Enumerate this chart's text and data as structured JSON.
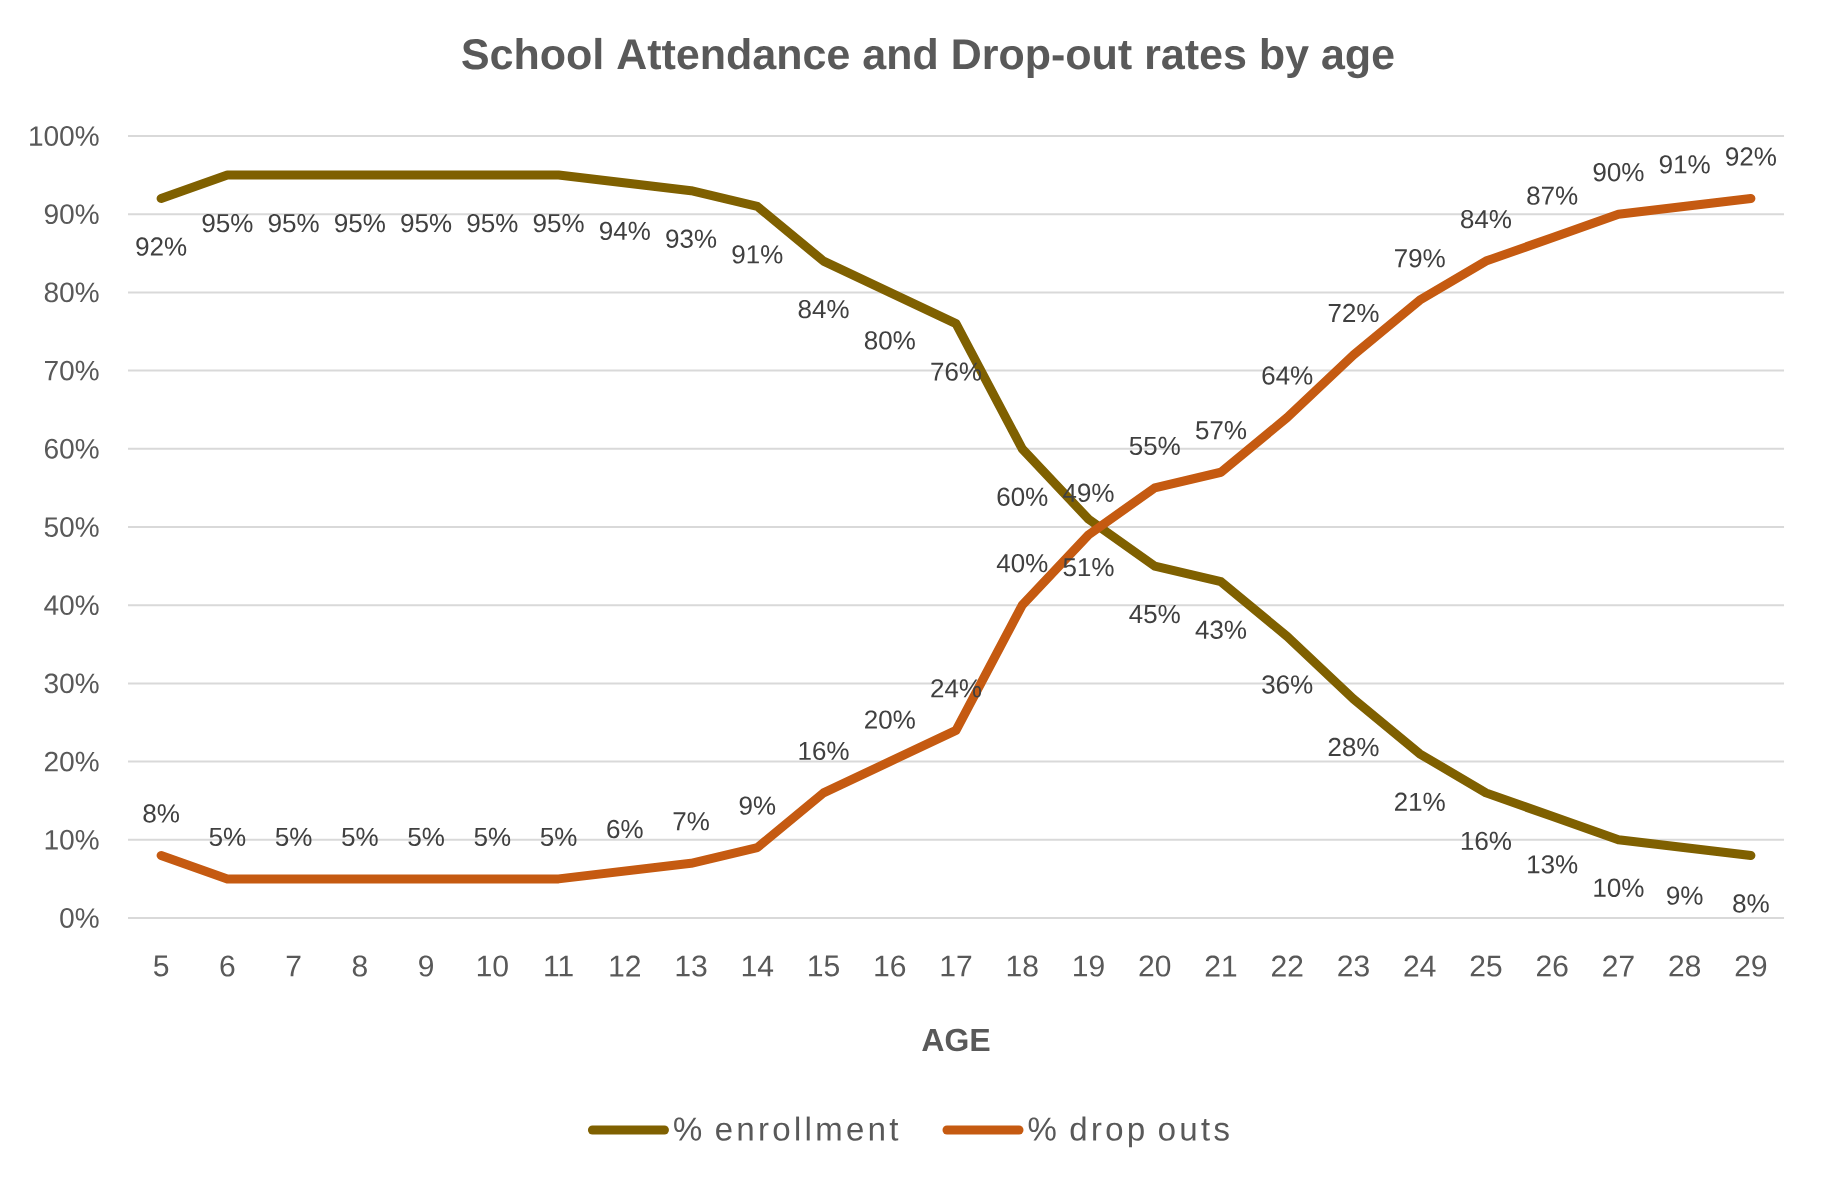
{
  "chart_data": {
    "type": "line",
    "title": "School Attendance and Drop-out rates by age",
    "xlabel": "AGE",
    "categories": [
      "5",
      "6",
      "7",
      "8",
      "9",
      "10",
      "11",
      "12",
      "13",
      "14",
      "15",
      "16",
      "17",
      "18",
      "19",
      "20",
      "21",
      "22",
      "23",
      "24",
      "25",
      "26",
      "27",
      "28",
      "29"
    ],
    "series": [
      {
        "name": "% enrollment",
        "color": "#7f6000",
        "values": [
          92,
          95,
          95,
          95,
          95,
          95,
          95,
          94,
          93,
          91,
          84,
          80,
          76,
          60,
          51,
          45,
          43,
          36,
          28,
          21,
          16,
          13,
          10,
          9,
          8
        ],
        "value_labels": [
          "92%",
          "95%",
          "95%",
          "95%",
          "95%",
          "95%",
          "95%",
          "94%",
          "93%",
          "91%",
          "84%",
          "80%",
          "76%",
          "60%",
          "51%",
          "45%",
          "43%",
          "36%",
          "28%",
          "21%",
          "16%",
          "13%",
          "10%",
          "9%",
          "8%"
        ]
      },
      {
        "name": "% drop outs",
        "color": "#c55a11",
        "values": [
          8,
          5,
          5,
          5,
          5,
          5,
          5,
          6,
          7,
          9,
          16,
          20,
          24,
          40,
          49,
          55,
          57,
          64,
          72,
          79,
          84,
          87,
          90,
          91,
          92
        ],
        "value_labels": [
          "8%",
          "5%",
          "5%",
          "5%",
          "5%",
          "5%",
          "5%",
          "6%",
          "7%",
          "9%",
          "16%",
          "20%",
          "24%",
          "40%",
          "49%",
          "55%",
          "57%",
          "64%",
          "72%",
          "79%",
          "84%",
          "87%",
          "90%",
          "91%",
          "92%"
        ]
      }
    ],
    "ylim": [
      0,
      100
    ],
    "yticks": [
      {
        "value": 0,
        "label": "0%"
      },
      {
        "value": 10,
        "label": "10%"
      },
      {
        "value": 20,
        "label": "20%"
      },
      {
        "value": 30,
        "label": "30%"
      },
      {
        "value": 40,
        "label": "40%"
      },
      {
        "value": 50,
        "label": "50%"
      },
      {
        "value": 60,
        "label": "60%"
      },
      {
        "value": 70,
        "label": "70%"
      },
      {
        "value": 80,
        "label": "80%"
      },
      {
        "value": 90,
        "label": "90%"
      },
      {
        "value": 100,
        "label": "100%"
      }
    ],
    "grid": "y",
    "legend": "bottom",
    "marker": "none",
    "line_style": "solid"
  }
}
